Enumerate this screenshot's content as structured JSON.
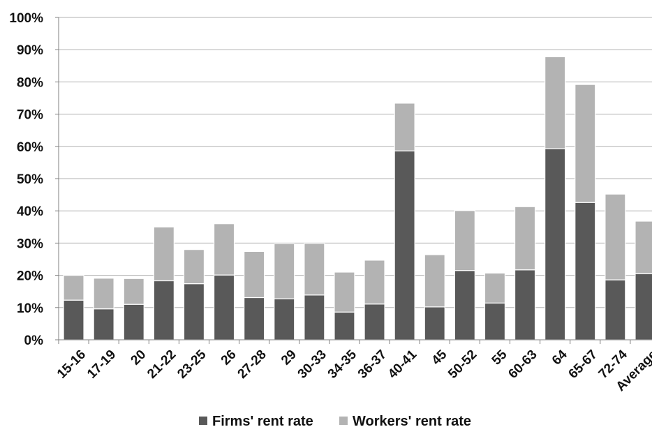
{
  "chart_data": {
    "type": "bar",
    "stacked": true,
    "categories": [
      "15-16",
      "17-19",
      "20",
      "21-22",
      "23-25",
      "26",
      "27-28",
      "29",
      "30-33",
      "34-35",
      "36-37",
      "40-41",
      "45",
      "50-52",
      "55",
      "60-63",
      "64",
      "65-67",
      "72-74",
      "Average"
    ],
    "series": [
      {
        "name": "Firms' rent rate",
        "color": "#595959",
        "values": [
          12.3,
          9.6,
          11.0,
          18.3,
          17.4,
          20.1,
          13.1,
          12.7,
          13.9,
          8.6,
          11.1,
          58.6,
          10.2,
          21.5,
          11.4,
          21.7,
          59.3,
          42.6,
          18.6,
          20.5
        ]
      },
      {
        "name": "Workers' rent rate",
        "color": "#b3b3b3",
        "values": [
          7.7,
          9.5,
          8.0,
          16.7,
          10.6,
          15.9,
          14.3,
          17.1,
          16.0,
          12.4,
          13.6,
          14.8,
          16.2,
          18.6,
          9.3,
          19.6,
          28.5,
          36.6,
          26.6,
          16.3
        ]
      }
    ],
    "yticks": [
      "0%",
      "10%",
      "20%",
      "30%",
      "40%",
      "50%",
      "60%",
      "70%",
      "80%",
      "90%",
      "100%"
    ],
    "ylim": [
      0,
      100
    ],
    "title": "",
    "xlabel": "",
    "ylabel": "",
    "grid": true,
    "legend_position": "bottom"
  }
}
